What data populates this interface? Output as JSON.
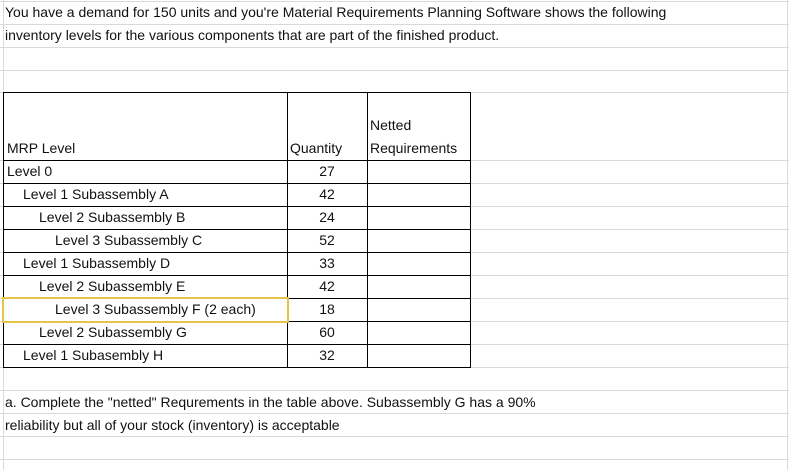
{
  "intro": [
    "You have a demand for 150 units and you're Material Requirements Planning Software shows the following",
    "inventory levels for the various components that are part of the finished product."
  ],
  "table": {
    "header": [
      "MRP Level",
      "Quantity",
      "Netted Requirements"
    ],
    "rows": [
      [
        "Level 0",
        27
      ],
      [
        "Level 1 Subassembly A",
        42
      ],
      [
        "Level 2 Subassembly B",
        24
      ],
      [
        "Level 3 Subassembly C",
        52
      ],
      [
        "Level 1 Subassembly D",
        33
      ],
      [
        "Level 2 Subassembly E",
        42
      ],
      [
        "Level 3 Subassembly F (2 each)",
        18
      ],
      [
        "Level 2 Subassembly G",
        60
      ],
      [
        "Level 1 Subasembly H",
        32
      ]
    ]
  },
  "question": [
    "a. Complete the \"netted\" Requrements in the table above.  Subassembly G has a 90%",
    "reliability but all of your stock (inventory) is acceptable"
  ]
}
